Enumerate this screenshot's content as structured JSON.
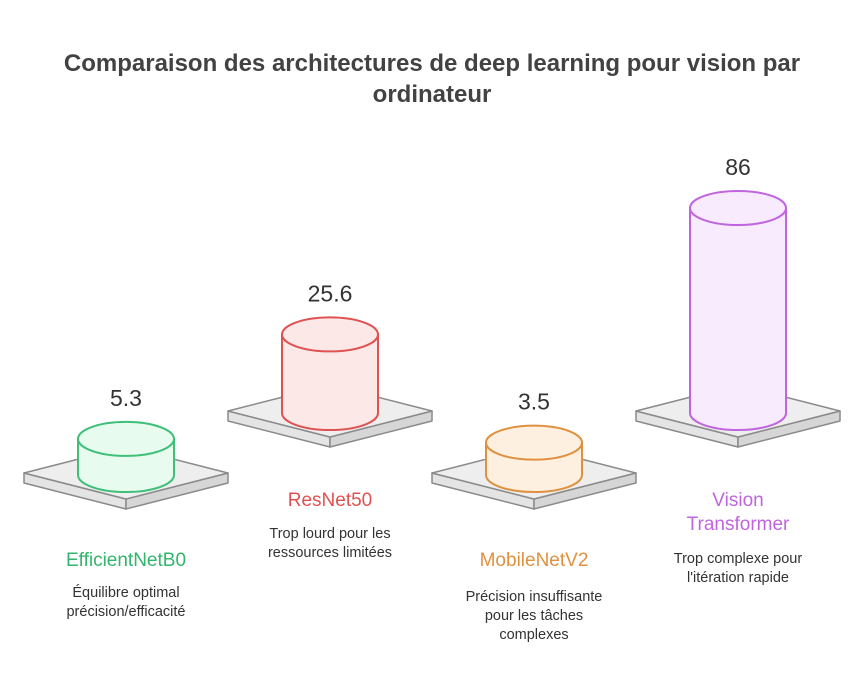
{
  "chart_data": {
    "type": "bar",
    "title": "Comparaison des architectures de deep learning pour vision par ordinateur",
    "series": [
      {
        "values": [
          5.3,
          25.6,
          3.5,
          86
        ]
      }
    ],
    "categories": [
      "EfficientNetB0",
      "ResNet50",
      "MobileNetV2",
      "Vision Transformer"
    ],
    "value_labels": [
      "5.3",
      "25.6",
      "3.5",
      "86"
    ],
    "category_lines": [
      [
        "EfficientNetB0"
      ],
      [
        "ResNet50"
      ],
      [
        "MobileNetV2"
      ],
      [
        "Vision",
        "Transformer"
      ]
    ],
    "descriptions": [
      [
        "Équilibre optimal",
        "précision/efficacité"
      ],
      [
        "Trop lourd pour les",
        "ressources limitées"
      ],
      [
        "Précision insuffisante",
        "pour les tâches",
        "complexes"
      ],
      [
        "Trop complexe pour",
        "l'itération rapide"
      ]
    ],
    "colors": [
      {
        "fill": "#e8fbef",
        "stroke": "#3ec079",
        "label": "#32b56c"
      },
      {
        "fill": "#fde8e8",
        "stroke": "#e05252",
        "label": "#e05252"
      },
      {
        "fill": "#fdf0e1",
        "stroke": "#e0913f",
        "label": "#e0913f"
      },
      {
        "fill": "#f8ebfd",
        "stroke": "#c065e0",
        "label": "#c065e0"
      }
    ]
  }
}
